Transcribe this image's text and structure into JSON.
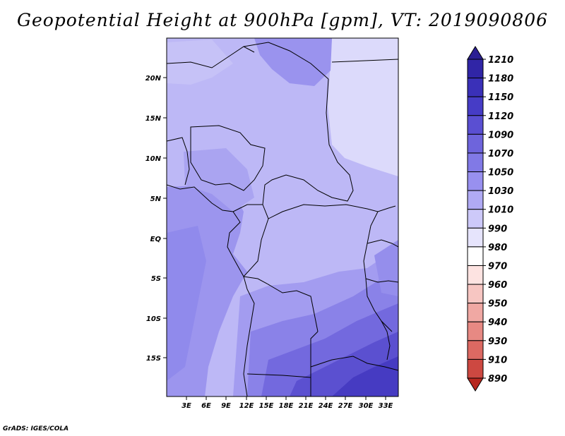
{
  "title": "Geopotential Height at 900hPa [gpm], VT: 2019090806",
  "credit": "GrADS: IGES/COLA",
  "map": {
    "lat_labels": [
      "20N",
      "15N",
      "10N",
      "5N",
      "EQ",
      "5S",
      "10S",
      "15S"
    ],
    "lon_labels": [
      "3E",
      "6E",
      "9E",
      "12E",
      "15E",
      "18E",
      "21E",
      "24E",
      "27E",
      "30E",
      "33E"
    ]
  },
  "colorbar": {
    "levels": [
      "1210",
      "1180",
      "1150",
      "1120",
      "1090",
      "1070",
      "1050",
      "1030",
      "1010",
      "990",
      "980",
      "970",
      "960",
      "950",
      "940",
      "930",
      "910",
      "890"
    ],
    "colors": [
      "#2b1f93",
      "#3025a6",
      "#3a30b8",
      "#463cc6",
      "#5a4fd2",
      "#6e64dc",
      "#8179e6",
      "#9890ef",
      "#b0aaf4",
      "#cdc9f9",
      "#e6e4fc",
      "#ffffff",
      "#fde3e1",
      "#f7c6c2",
      "#f0a8a3",
      "#e78983",
      "#dc6962",
      "#cd4841",
      "#b7271f"
    ]
  }
}
